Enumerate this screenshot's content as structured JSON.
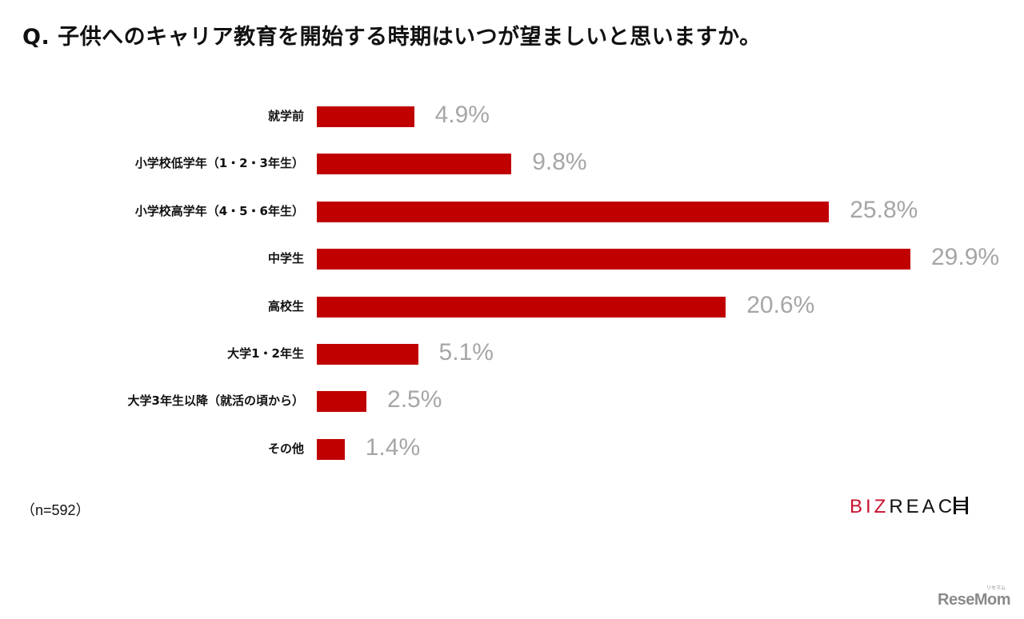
{
  "title": "Q. 子供へのキャリア教育を開始する時期はいつが望ましいと思いますか。",
  "chart_data": {
    "type": "bar",
    "orientation": "horizontal",
    "title": "Q. 子供へのキャリア教育を開始する時期はいつが望ましいと思いますか。",
    "categories": [
      "就学前",
      "小学校低学年（1・2・3年生）",
      "小学校高学年（4・5・6年生）",
      "中学生",
      "高校生",
      "大学1・2年生",
      "大学3年生以降（就活の頃から）",
      "その他"
    ],
    "values": [
      4.9,
      9.8,
      25.8,
      29.9,
      20.6,
      5.1,
      2.5,
      1.4
    ],
    "value_labels": [
      "4.9%",
      "9.8%",
      "25.8%",
      "29.9%",
      "20.6%",
      "5.1%",
      "2.5%",
      "1.4%"
    ],
    "unit": "%",
    "xlabel": "",
    "ylabel": "",
    "grid": false,
    "legend": null,
    "bar_color": "#c00000",
    "label_color": "#a6a6a6",
    "sample_size": "n=592"
  },
  "footnote": "（n=592）",
  "logo": {
    "red_part": "BIZ",
    "black_part": "REAC"
  },
  "watermark": {
    "text": "ReseMom",
    "ruby": "リセマム"
  }
}
